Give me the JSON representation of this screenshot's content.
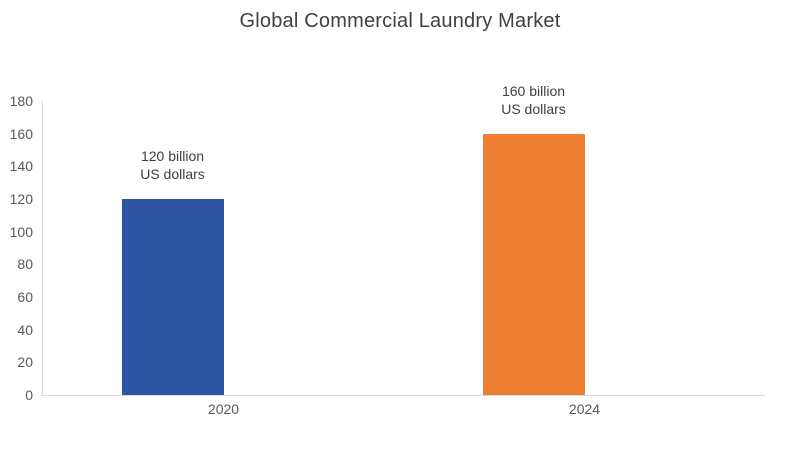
{
  "chart_data": {
    "type": "bar",
    "title": "Global Commercial Laundry Market",
    "categories": [
      "2020",
      "2024"
    ],
    "values": [
      120,
      160
    ],
    "unit": "billion US dollars",
    "data_labels": [
      [
        "120 billion",
        "US dollars"
      ],
      [
        "160 billion",
        "US dollars"
      ]
    ],
    "bar_colors": [
      "#2e55a3",
      "#ed7d31"
    ],
    "ylim": [
      0,
      180
    ],
    "yticks": [
      0,
      20,
      40,
      60,
      80,
      100,
      120,
      140,
      160,
      180
    ],
    "xlabel": "",
    "ylabel": "",
    "grid": false,
    "legend": "none",
    "axis_color": "#d9d9d9",
    "tick_label_color": "#595959",
    "data_label_color": "#404040",
    "title_color": "#404040"
  }
}
